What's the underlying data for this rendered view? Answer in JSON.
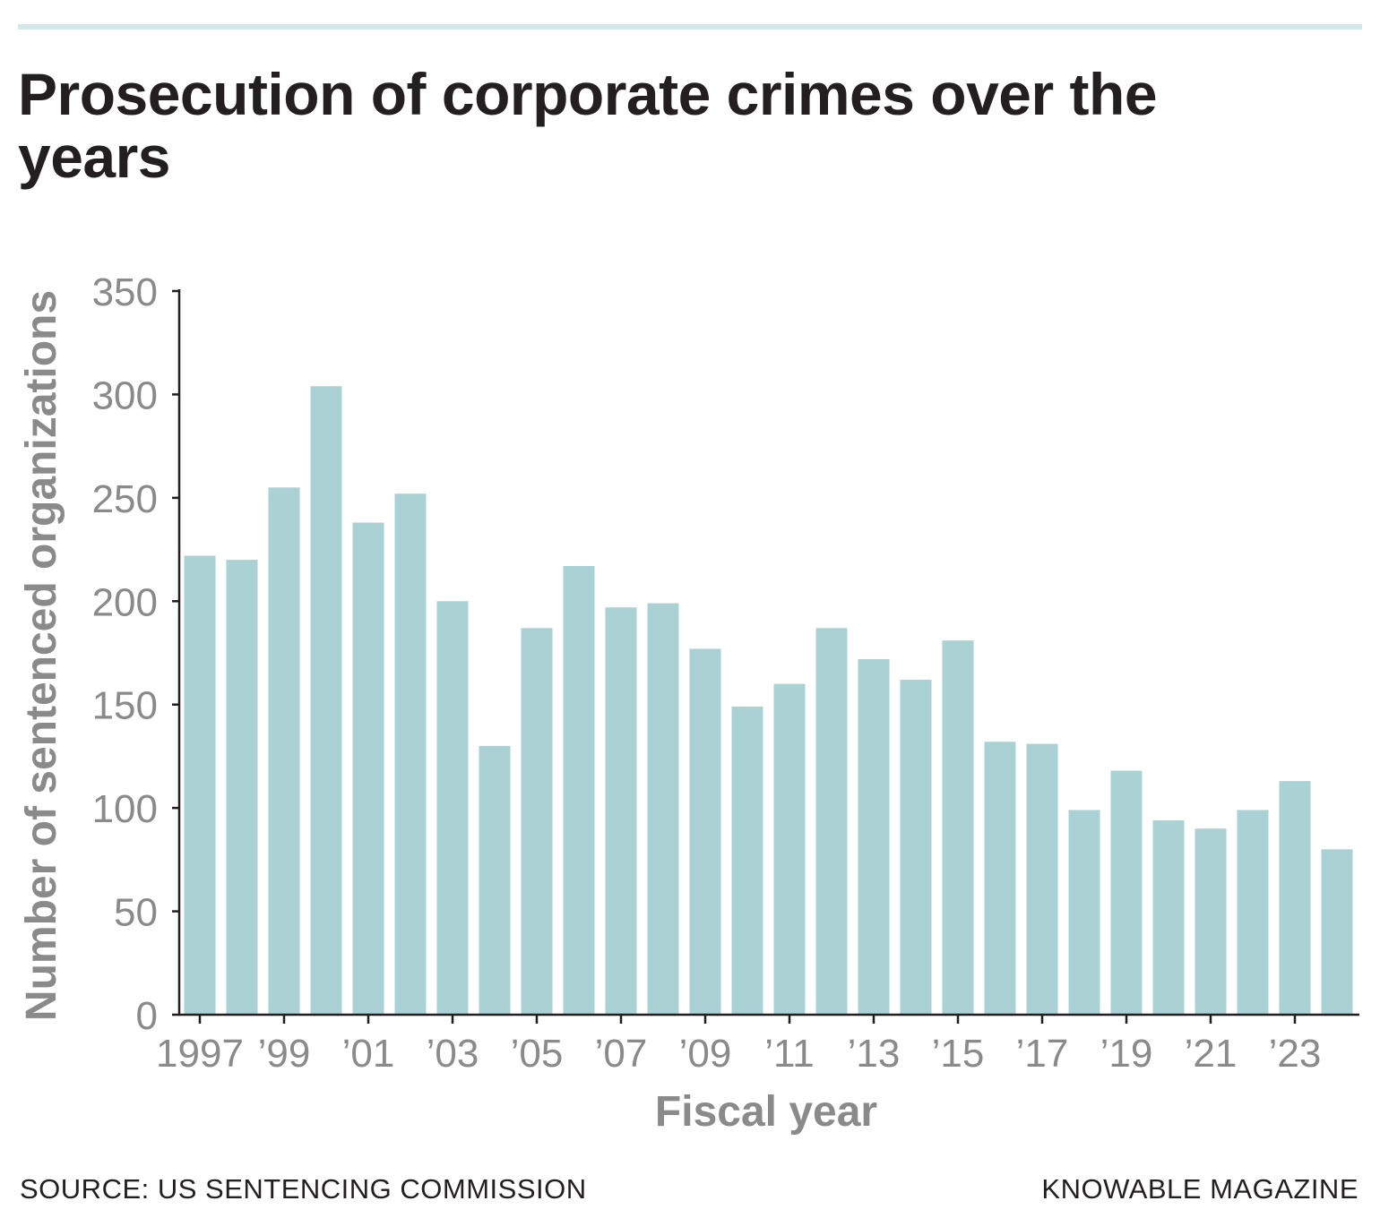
{
  "chart_data": {
    "type": "bar",
    "title": "Prosecution of corporate crimes over the years",
    "xlabel": "Fiscal year",
    "ylabel": "Number of sentenced organizations",
    "ylim": [
      0,
      350
    ],
    "yticks": [
      "0",
      "50",
      "100",
      "150",
      "200",
      "250",
      "300",
      "350"
    ],
    "grid": false,
    "categories": [
      "1997",
      "1998",
      "1999",
      "2000",
      "2001",
      "2002",
      "2003",
      "2004",
      "2005",
      "2006",
      "2007",
      "2008",
      "2009",
      "2010",
      "2011",
      "2012",
      "2013",
      "2014",
      "2015",
      "2016",
      "2017",
      "2018",
      "2019",
      "2020",
      "2021",
      "2022",
      "2023",
      "2024"
    ],
    "xtick_labels": [
      "1997",
      "’99",
      "’01",
      "’03",
      "’05",
      "’07",
      "’09",
      "’11",
      "’13",
      "’15",
      "’17",
      "’19",
      "’21",
      "’23"
    ],
    "values": [
      222,
      220,
      255,
      304,
      238,
      252,
      200,
      130,
      187,
      217,
      197,
      199,
      177,
      149,
      160,
      187,
      172,
      162,
      181,
      132,
      131,
      99,
      118,
      94,
      90,
      99,
      113,
      80
    ],
    "bar_color": "#aad1d4",
    "accent_bar_color": "#d3e8e9"
  },
  "footer": {
    "source": "SOURCE: US SENTENCING COMMISSION",
    "credit": "KNOWABLE MAGAZINE"
  }
}
